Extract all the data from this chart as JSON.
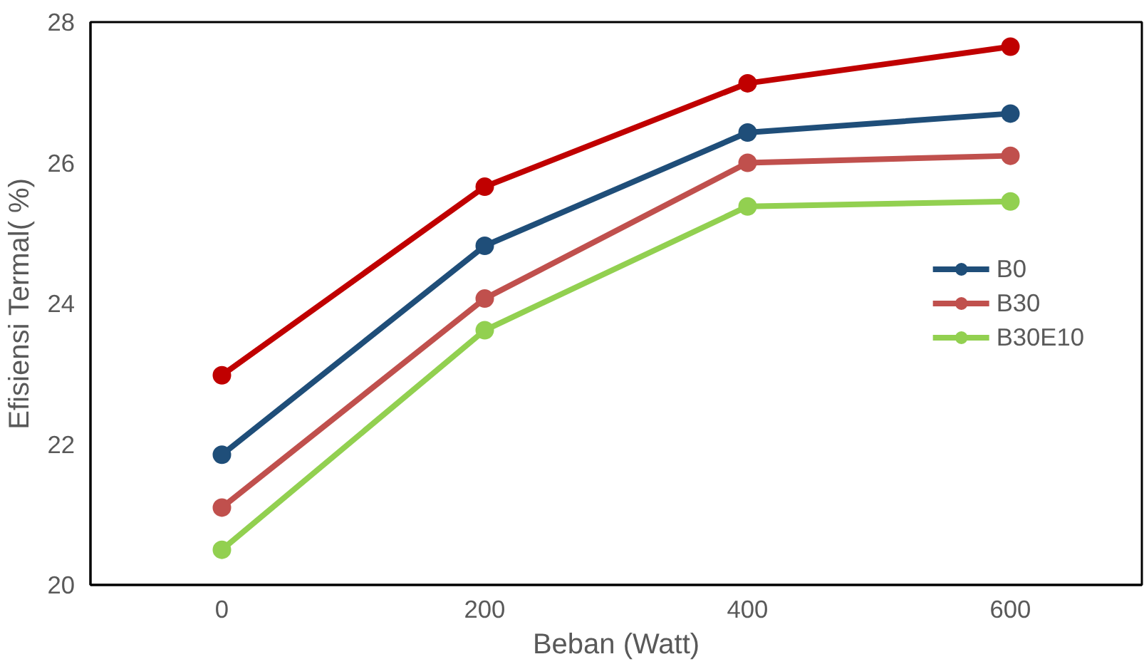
{
  "chart_data": {
    "type": "line",
    "xlabel": "Beban (Watt)",
    "ylabel": "Efisiensi Termal( %)",
    "x": [
      0,
      200,
      400,
      600
    ],
    "series": [
      {
        "name": "B0",
        "color": "#1f4e79",
        "values": [
          21.85,
          24.82,
          26.43,
          26.7
        ]
      },
      {
        "name": "B30",
        "color": "#c0504d",
        "values": [
          21.1,
          24.07,
          26.0,
          26.1
        ]
      },
      {
        "name": "B30E10",
        "color": "#92d050",
        "values": [
          20.5,
          23.62,
          25.38,
          25.45
        ]
      },
      {
        "color": "#c00000",
        "values": [
          22.98,
          25.66,
          27.13,
          27.65
        ]
      }
    ],
    "xlim": [
      -100,
      700
    ],
    "xticks": [
      0,
      200,
      400,
      600
    ],
    "ylim": [
      20,
      28
    ],
    "yticks": [
      20,
      22,
      24,
      26,
      28
    ],
    "grid": false,
    "legend": "right",
    "marker": "circle",
    "line_style": "solid"
  }
}
